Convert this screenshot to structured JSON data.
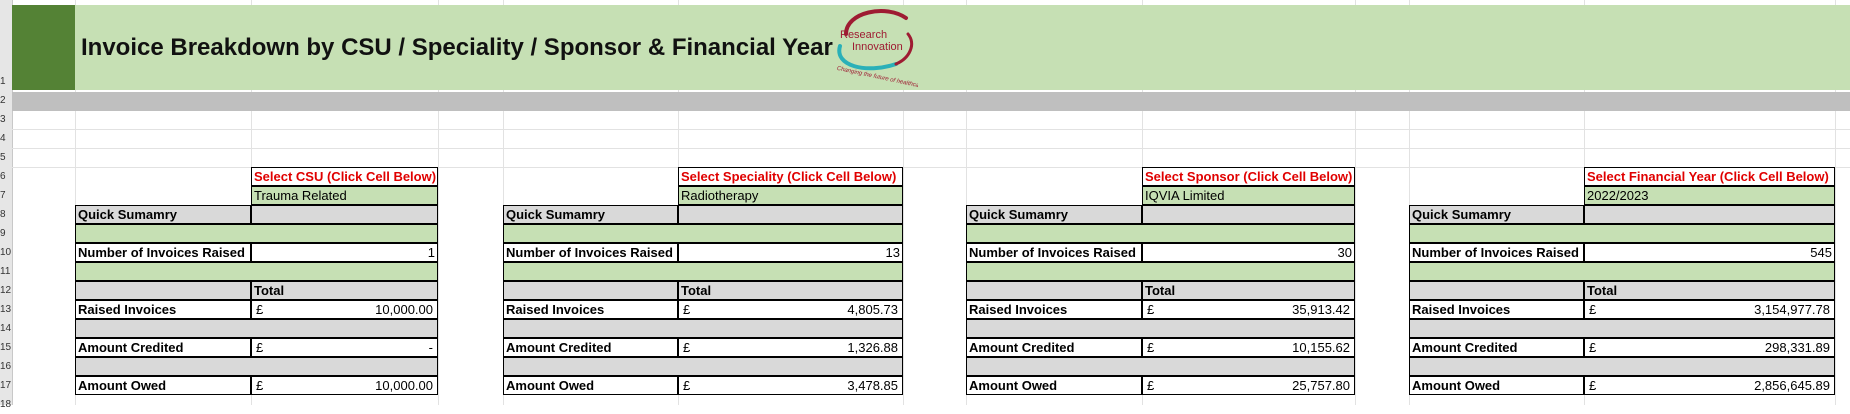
{
  "title": "Invoice Breakdown by CSU / Speciality / Sponsor & Financial Year",
  "logo": {
    "line1": "Research",
    "line2": "Innovation",
    "tagline": "Changing the future of healthcare"
  },
  "row_numbers": [
    "1",
    "2",
    "3",
    "4",
    "5",
    "6",
    "7",
    "8",
    "9",
    "10",
    "11",
    "12",
    "13",
    "14",
    "15",
    "16",
    "17",
    "18"
  ],
  "blocks": [
    {
      "select_label": "Select CSU (Click Cell Below)",
      "selected_value": "Trauma Related",
      "quick_summary": "Quick Sumamry",
      "invoices_label": "Number of Invoices Raised",
      "invoices_count": "1",
      "total_label": "Total",
      "currency": "£",
      "raised_label": "Raised Invoices",
      "raised_value": "10,000.00",
      "credited_label": "Amount Credited",
      "credited_value": "-",
      "owed_label": "Amount Owed",
      "owed_value": "10,000.00"
    },
    {
      "select_label": "Select Speciality (Click Cell Below)",
      "selected_value": "Radiotherapy",
      "quick_summary": "Quick Sumamry",
      "invoices_label": "Number of Invoices Raised",
      "invoices_count": "13",
      "total_label": "Total",
      "currency": "£",
      "raised_label": "Raised Invoices",
      "raised_value": "4,805.73",
      "credited_label": "Amount Credited",
      "credited_value": "1,326.88",
      "owed_label": "Amount Owed",
      "owed_value": "3,478.85"
    },
    {
      "select_label": "Select Sponsor (Click Cell Below)",
      "selected_value": "IQVIA Limited",
      "quick_summary": "Quick Sumamry",
      "invoices_label": "Number of Invoices Raised",
      "invoices_count": "30",
      "total_label": "Total",
      "currency": "£",
      "raised_label": "Raised Invoices",
      "raised_value": "35,913.42",
      "credited_label": "Amount Credited",
      "credited_value": "10,155.62",
      "owed_label": "Amount Owed",
      "owed_value": "25,757.80"
    },
    {
      "select_label": "Select Financial Year (Click Cell Below)",
      "selected_value": "2022/2023",
      "quick_summary": "Quick Sumamry",
      "invoices_label": "Number of Invoices Raised",
      "invoices_count": "545",
      "total_label": "Total",
      "currency": "£",
      "raised_label": "Raised Invoices",
      "raised_value": "3,154,977.78",
      "credited_label": "Amount Credited",
      "credited_value": "298,331.89",
      "owed_label": "Amount Owed",
      "owed_value": "2,856,645.89"
    }
  ],
  "colors": {
    "banner": "#c6e0b4",
    "banner_accent": "#548235",
    "header_bar": "#bfbfbf",
    "label_red": "#e00000",
    "summary_grey": "#d9d9d9",
    "logo_red": "#9e1b32",
    "logo_teal": "#2ab0b8"
  }
}
